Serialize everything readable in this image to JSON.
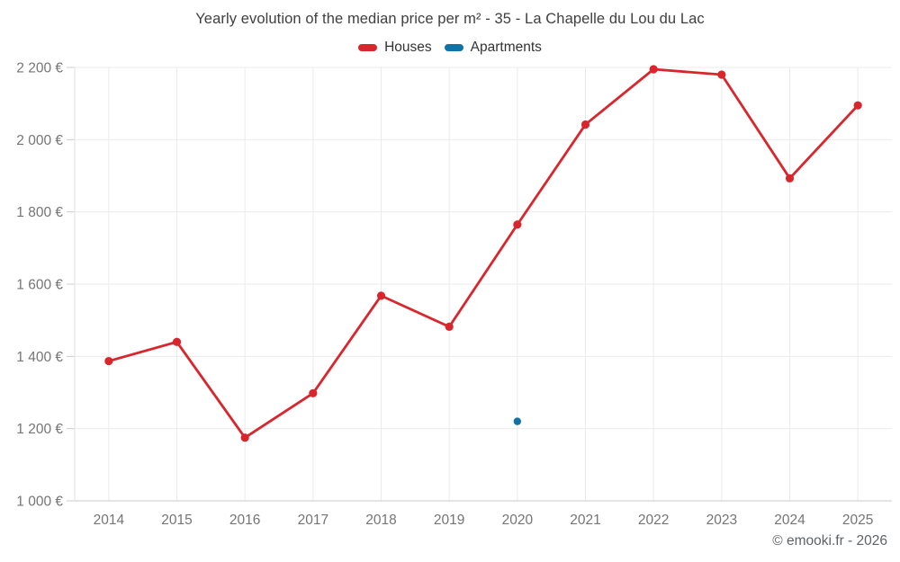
{
  "footer": {
    "credit": "© emooki.fr - 2026"
  },
  "chart_data": {
    "type": "line",
    "title": "Yearly evolution of the median price per m² - 35 - La Chapelle du Lou du Lac",
    "categories": [
      "2014",
      "2015",
      "2016",
      "2017",
      "2018",
      "2019",
      "2020",
      "2021",
      "2022",
      "2023",
      "2024",
      "2025"
    ],
    "series": [
      {
        "name": "Houses",
        "color": "#d9262c",
        "marker_radius": 4.6,
        "values": [
          1387,
          1440,
          1175,
          1298,
          1568,
          1482,
          1765,
          2042,
          2195,
          2180,
          1893,
          2095
        ]
      },
      {
        "name": "Apartments",
        "color": "#1172a3",
        "marker_radius": 4.2,
        "values": [
          null,
          null,
          null,
          null,
          null,
          null,
          1220,
          null,
          null,
          null,
          null,
          null
        ]
      }
    ],
    "ylabel": "",
    "xlabel": "",
    "ylim": [
      1000,
      2200
    ],
    "y_tick_values": [
      1000,
      1200,
      1400,
      1600,
      1800,
      2000,
      2200
    ],
    "y_ticks": [
      "1 000 €",
      "1 200 €",
      "1 400 €",
      "1 600 €",
      "1 800 €",
      "2 000 €",
      "2 200 €"
    ],
    "grid": true,
    "legend_position": "top"
  }
}
